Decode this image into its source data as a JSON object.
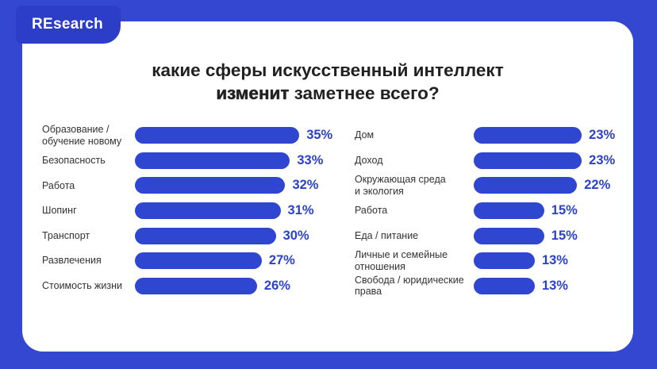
{
  "page": {
    "background_color": "#3347d1",
    "card_color": "#ffffff"
  },
  "logo": {
    "text": "REsearch",
    "badge_color": "#2c3dc7"
  },
  "title": {
    "line1": "какие сферы искусственный интеллект",
    "line2_bold": "изменит",
    "line2_rest": " заметнее всего?"
  },
  "chart_data": {
    "type": "bar",
    "orientation": "horizontal",
    "title": "какие сферы искусственный интеллект изменит заметнее всего?",
    "value_suffix": "%",
    "xlim": [
      0,
      35
    ],
    "bar_color": "#2f46d1",
    "value_color": "#2a42cb",
    "columns": [
      {
        "name": "left",
        "items": [
          {
            "label": "Образование /\nобучение новому",
            "value": 35
          },
          {
            "label": "Безопасность",
            "value": 33
          },
          {
            "label": "Работа",
            "value": 32
          },
          {
            "label": "Шопинг",
            "value": 31
          },
          {
            "label": "Транспорт",
            "value": 30
          },
          {
            "label": "Развлечения",
            "value": 27
          },
          {
            "label": "Стоимость жизни",
            "value": 26
          }
        ]
      },
      {
        "name": "right",
        "items": [
          {
            "label": "Дом",
            "value": 23
          },
          {
            "label": "Доход",
            "value": 23
          },
          {
            "label": "Окружающая среда\nи экология",
            "value": 22
          },
          {
            "label": "Работа",
            "value": 15
          },
          {
            "label": "Еда / питание",
            "value": 15
          },
          {
            "label": "Личные и семейные\nотношения",
            "value": 13
          },
          {
            "label": "Свобода / юридические\nправа",
            "value": 13
          }
        ]
      }
    ]
  }
}
